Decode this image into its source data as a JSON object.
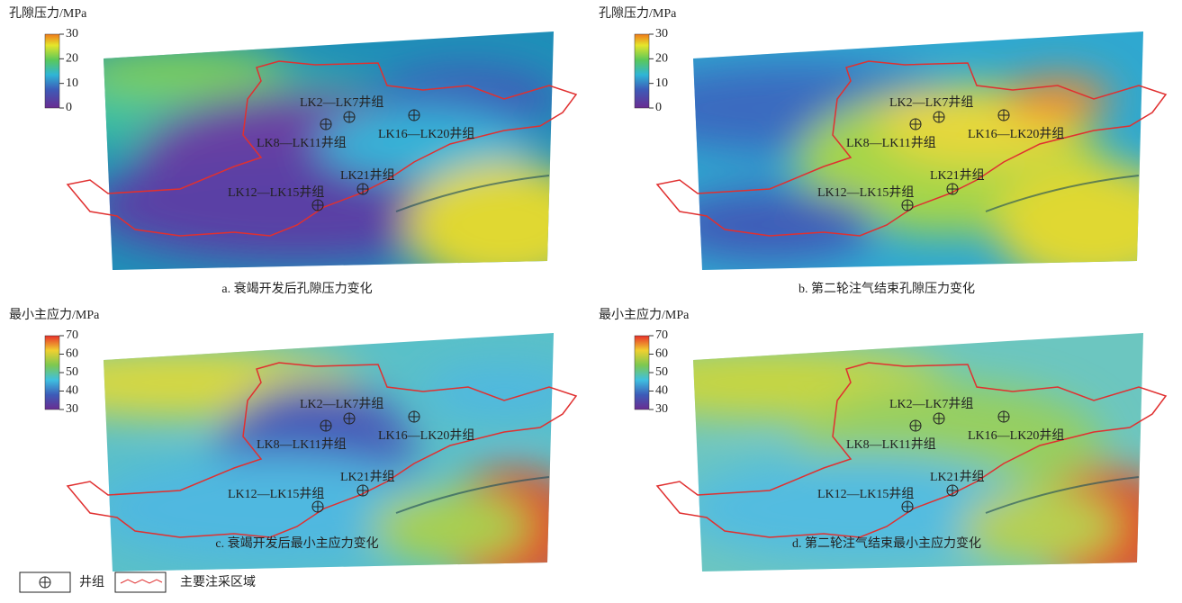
{
  "panels": [
    {
      "unit": "孔隙压力/MPa",
      "ticks": [
        "30",
        "20",
        "10",
        "0"
      ],
      "caption": "a. 衰竭开发后孔隙压力变化",
      "wells": [
        "LK2—LK7井组",
        "LK8—LK11井组",
        "LK16—LK20井组",
        "LK21井组",
        "LK12—LK15井组"
      ]
    },
    {
      "unit": "孔隙压力/MPa",
      "ticks": [
        "30",
        "20",
        "10",
        "0"
      ],
      "caption": "b. 第二轮注气结束孔隙压力变化",
      "wells": [
        "LK2—LK7井组",
        "LK8—LK11井组",
        "LK16—LK20井组",
        "LK21井组",
        "LK12—LK15井组"
      ]
    },
    {
      "unit": "最小主应力/MPa",
      "ticks": [
        "70",
        "60",
        "50",
        "40",
        "30"
      ],
      "caption": "c. 衰竭开发后最小主应力变化",
      "wells": [
        "LK2—LK7井组",
        "LK8—LK11井组",
        "LK16—LK20井组",
        "LK21井组",
        "LK12—LK15井组"
      ]
    },
    {
      "unit": "最小主应力/MPa",
      "ticks": [
        "70",
        "60",
        "50",
        "40",
        "30"
      ],
      "caption": "d. 第二轮注气结束最小主应力变化",
      "wells": [
        "LK2—LK7井组",
        "LK8—LK11井组",
        "LK16—LK20井组",
        "LK21井组",
        "LK12—LK15井组"
      ]
    }
  ],
  "legend": {
    "well": "井组",
    "zone": "主要注采区域"
  }
}
